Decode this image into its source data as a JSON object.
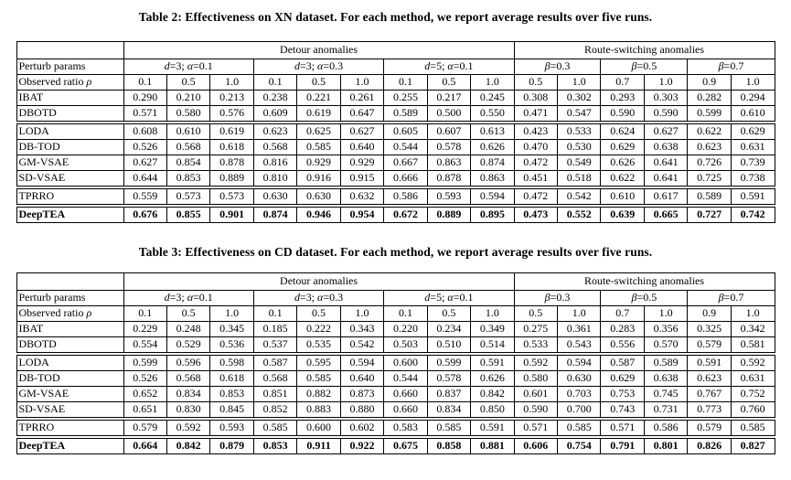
{
  "tables": [
    {
      "title": "Table 2: Effectiveness on XN dataset. For each method, we report average results over five runs.",
      "col_groups": [
        {
          "label": "Detour anomalies",
          "span": 9
        },
        {
          "label": "Route-switching anomalies",
          "span": 6
        }
      ],
      "perturb_label": "Perturb params",
      "perturb_groups": [
        {
          "label": "d=3; α=0.1",
          "span": 3
        },
        {
          "label": "d=3; α=0.3",
          "span": 3
        },
        {
          "label": "d=5; α=0.1",
          "span": 3
        },
        {
          "label": "β=0.3",
          "span": 2
        },
        {
          "label": "β=0.5",
          "span": 2
        },
        {
          "label": "β=0.7",
          "span": 2
        }
      ],
      "ratio_label": "Observed ratio ρ",
      "ratios": [
        "0.1",
        "0.5",
        "1.0",
        "0.1",
        "0.5",
        "1.0",
        "0.1",
        "0.5",
        "1.0",
        "0.5",
        "1.0",
        "0.7",
        "1.0",
        "0.9",
        "1.0"
      ],
      "groups": [
        {
          "rows": [
            {
              "label": "IBAT",
              "bold": false,
              "values": [
                "0.290",
                "0.210",
                "0.213",
                "0.238",
                "0.221",
                "0.261",
                "0.255",
                "0.217",
                "0.245",
                "0.308",
                "0.302",
                "0.293",
                "0.303",
                "0.282",
                "0.294"
              ]
            },
            {
              "label": "DBOTD",
              "bold": false,
              "values": [
                "0.571",
                "0.580",
                "0.576",
                "0.609",
                "0.619",
                "0.647",
                "0.589",
                "0.500",
                "0.550",
                "0.471",
                "0.547",
                "0.590",
                "0.590",
                "0.599",
                "0.610"
              ]
            }
          ]
        },
        {
          "rows": [
            {
              "label": "LODA",
              "bold": false,
              "values": [
                "0.608",
                "0.610",
                "0.619",
                "0.623",
                "0.625",
                "0.627",
                "0.605",
                "0.607",
                "0.613",
                "0.423",
                "0.533",
                "0.624",
                "0.627",
                "0.622",
                "0.629"
              ]
            },
            {
              "label": "DB-TOD",
              "bold": false,
              "values": [
                "0.526",
                "0.568",
                "0.618",
                "0.568",
                "0.585",
                "0.640",
                "0.544",
                "0.578",
                "0.626",
                "0.470",
                "0.530",
                "0.629",
                "0.638",
                "0.623",
                "0.631"
              ]
            },
            {
              "label": "GM-VSAE",
              "bold": false,
              "values": [
                "0.627",
                "0.854",
                "0.878",
                "0.816",
                "0.929",
                "0.929",
                "0.667",
                "0.863",
                "0.874",
                "0.472",
                "0.549",
                "0.626",
                "0.641",
                "0.726",
                "0.739"
              ]
            },
            {
              "label": "SD-VSAE",
              "bold": false,
              "values": [
                "0.644",
                "0.853",
                "0.889",
                "0.810",
                "0.916",
                "0.915",
                "0.666",
                "0.878",
                "0.863",
                "0.451",
                "0.518",
                "0.622",
                "0.641",
                "0.725",
                "0.738"
              ]
            }
          ]
        },
        {
          "rows": [
            {
              "label": "TPRRO",
              "bold": false,
              "values": [
                "0.559",
                "0.573",
                "0.573",
                "0.630",
                "0.630",
                "0.632",
                "0.586",
                "0.593",
                "0.594",
                "0.472",
                "0.542",
                "0.610",
                "0.617",
                "0.589",
                "0.591"
              ]
            }
          ]
        },
        {
          "rows": [
            {
              "label": "DeepTEA",
              "bold": true,
              "values": [
                "0.676",
                "0.855",
                "0.901",
                "0.874",
                "0.946",
                "0.954",
                "0.672",
                "0.889",
                "0.895",
                "0.473",
                "0.552",
                "0.639",
                "0.665",
                "0.727",
                "0.742"
              ]
            }
          ]
        }
      ]
    },
    {
      "title": "Table 3: Effectiveness on CD dataset. For each method, we report average results over five runs.",
      "col_groups": [
        {
          "label": "Detour anomalies",
          "span": 9
        },
        {
          "label": "Route-switching anomalies",
          "span": 6
        }
      ],
      "perturb_label": "Perturb params",
      "perturb_groups": [
        {
          "label": "d=3; α=0.1",
          "span": 3
        },
        {
          "label": "d=3; α=0.3",
          "span": 3
        },
        {
          "label": "d=5; α=0.1",
          "span": 3
        },
        {
          "label": "β=0.3",
          "span": 2
        },
        {
          "label": "β=0.5",
          "span": 2
        },
        {
          "label": "β=0.7",
          "span": 2
        }
      ],
      "ratio_label": "Observed ratio ρ",
      "ratios": [
        "0.1",
        "0.5",
        "1.0",
        "0.1",
        "0.5",
        "1.0",
        "0.1",
        "0.5",
        "1.0",
        "0.5",
        "1.0",
        "0.7",
        "1.0",
        "0.9",
        "1.0"
      ],
      "groups": [
        {
          "rows": [
            {
              "label": "IBAT",
              "bold": false,
              "values": [
                "0.229",
                "0.248",
                "0.345",
                "0.185",
                "0.222",
                "0.343",
                "0.220",
                "0.234",
                "0.349",
                "0.275",
                "0.361",
                "0.283",
                "0.356",
                "0.325",
                "0.342"
              ]
            },
            {
              "label": "DBOTD",
              "bold": false,
              "values": [
                "0.554",
                "0.529",
                "0.536",
                "0.537",
                "0.535",
                "0.542",
                "0.503",
                "0.510",
                "0.514",
                "0.533",
                "0.543",
                "0.556",
                "0.570",
                "0.579",
                "0.581"
              ]
            }
          ]
        },
        {
          "rows": [
            {
              "label": "LODA",
              "bold": false,
              "values": [
                "0.599",
                "0.596",
                "0.598",
                "0.587",
                "0.595",
                "0.594",
                "0.600",
                "0.599",
                "0.591",
                "0.592",
                "0.594",
                "0.587",
                "0.589",
                "0.591",
                "0.592"
              ]
            },
            {
              "label": "DB-TOD",
              "bold": false,
              "values": [
                "0.526",
                "0.568",
                "0.618",
                "0.568",
                "0.585",
                "0.640",
                "0.544",
                "0.578",
                "0.626",
                "0.580",
                "0.630",
                "0.629",
                "0.638",
                "0.623",
                "0.631"
              ]
            },
            {
              "label": "GM-VSAE",
              "bold": false,
              "values": [
                "0.652",
                "0.834",
                "0.853",
                "0.851",
                "0.882",
                "0.873",
                "0.660",
                "0.837",
                "0.842",
                "0.601",
                "0.703",
                "0.753",
                "0.745",
                "0.767",
                "0.752"
              ]
            },
            {
              "label": "SD-VSAE",
              "bold": false,
              "values": [
                "0.651",
                "0.830",
                "0.845",
                "0.852",
                "0.883",
                "0.880",
                "0.660",
                "0.834",
                "0.850",
                "0.590",
                "0.700",
                "0.743",
                "0.731",
                "0.773",
                "0.760"
              ]
            }
          ]
        },
        {
          "rows": [
            {
              "label": "TPRRO",
              "bold": false,
              "values": [
                "0.579",
                "0.592",
                "0.593",
                "0.585",
                "0.600",
                "0.602",
                "0.583",
                "0.585",
                "0.591",
                "0.571",
                "0.585",
                "0.571",
                "0.586",
                "0.579",
                "0.585"
              ]
            }
          ]
        },
        {
          "rows": [
            {
              "label": "DeepTEA",
              "bold": true,
              "values": [
                "0.664",
                "0.842",
                "0.879",
                "0.853",
                "0.911",
                "0.922",
                "0.675",
                "0.858",
                "0.881",
                "0.606",
                "0.754",
                "0.791",
                "0.801",
                "0.826",
                "0.827"
              ]
            }
          ]
        }
      ]
    }
  ]
}
